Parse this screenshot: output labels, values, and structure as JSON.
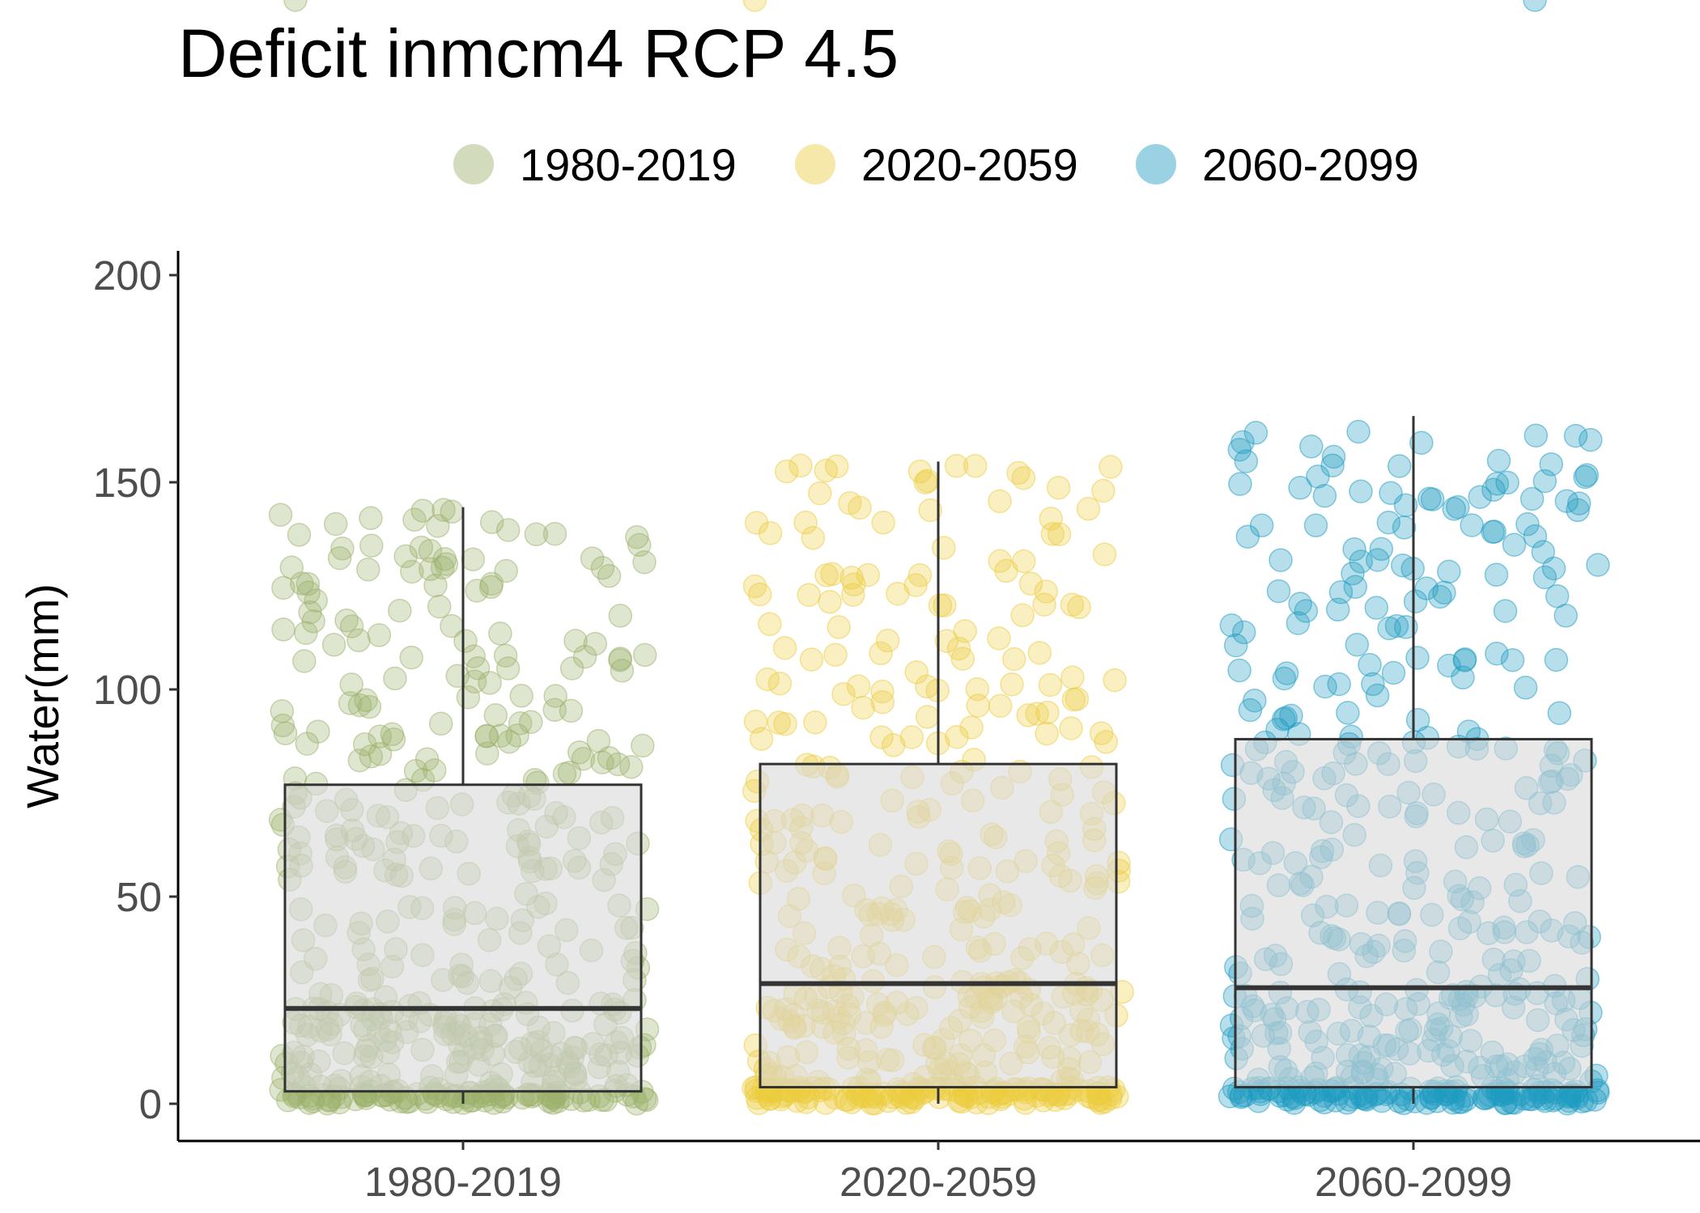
{
  "chart_data": {
    "type": "box+jitter",
    "title": "Deficit inmcm4 RCP 4.5",
    "xlabel": "",
    "ylabel": "Water(mm)",
    "ylim": [
      -10,
      206
    ],
    "yticks": [
      0,
      50,
      100,
      150,
      200
    ],
    "legend_position": "top",
    "grid": false,
    "categories": [
      "1980-2019",
      "2020-2059",
      "2060-2099"
    ],
    "series": [
      {
        "name": "1980-2019",
        "color": "#9bb06b",
        "box": {
          "whisker_low": 0,
          "q1": 3,
          "median": 23,
          "q3": 77,
          "whisker_high": 144
        },
        "max_point": 144
      },
      {
        "name": "2020-2059",
        "color": "#eccc3f",
        "box": {
          "whisker_low": 0,
          "q1": 4,
          "median": 29,
          "q3": 82,
          "whisker_high": 155
        },
        "max_point": 155
      },
      {
        "name": "2060-2099",
        "color": "#1e9bc2",
        "box": {
          "whisker_low": 0,
          "q1": 4,
          "median": 28,
          "q3": 88,
          "whisker_high": 166
        },
        "max_point": 166
      }
    ]
  }
}
